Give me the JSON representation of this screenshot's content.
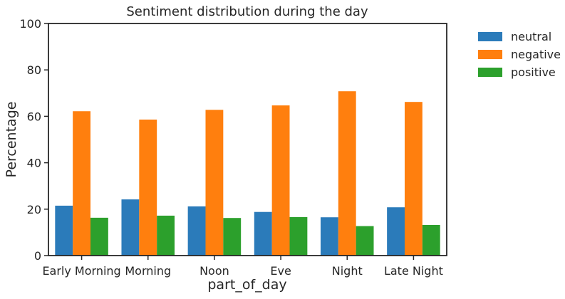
{
  "chart_data": {
    "type": "bar",
    "title": "Sentiment distribution during the day",
    "xlabel": "part_of_day",
    "ylabel": "Percentage",
    "categories": [
      "Early Morning",
      "Morning",
      "Noon",
      "Eve",
      "Night",
      "Late Night"
    ],
    "series": [
      {
        "name": "neutral",
        "color": "#2b7bba",
        "values": [
          21.5,
          24.2,
          21.2,
          18.8,
          16.5,
          20.8
        ]
      },
      {
        "name": "negative",
        "color": "#ff7f0e",
        "values": [
          62.2,
          58.6,
          62.8,
          64.7,
          70.8,
          66.2
        ]
      },
      {
        "name": "positive",
        "color": "#2ca02c",
        "values": [
          16.3,
          17.2,
          16.2,
          16.6,
          12.7,
          13.2
        ]
      }
    ],
    "yticks": [
      0,
      20,
      40,
      60,
      80,
      100
    ],
    "ylim": [
      0,
      100
    ],
    "grid": false,
    "legend_position": "outside-top-right"
  }
}
